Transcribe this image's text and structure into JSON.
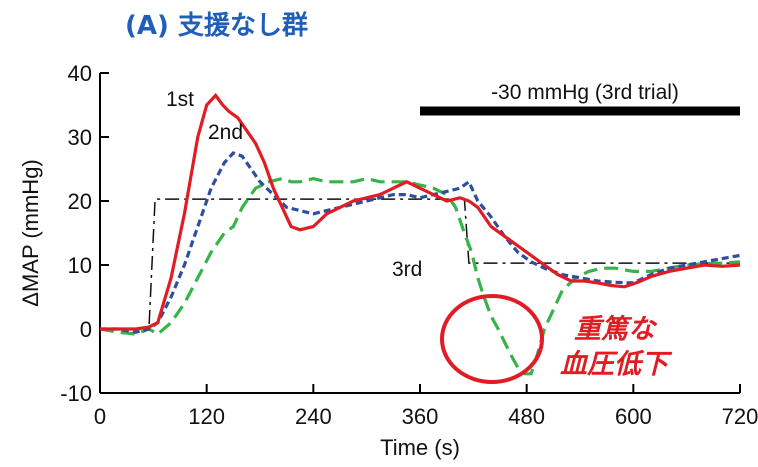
{
  "title": "(A) 支援なし群",
  "colors": {
    "title": "#1f5fb8",
    "first": "#e11c24",
    "second": "#2e4f9e",
    "third": "#37b449",
    "step": "#111111",
    "bar": "#000000",
    "highlight": "#e11c24"
  },
  "chart_data": {
    "type": "line",
    "xlabel": "Time (s)",
    "ylabel": "ΔMAP (mmHg)",
    "xlim": [
      0,
      720
    ],
    "ylim": [
      -10,
      40
    ],
    "xticks": [
      0,
      120,
      240,
      360,
      480,
      600,
      720
    ],
    "yticks": [
      -10,
      0,
      10,
      20,
      30,
      40
    ],
    "bar_label": "-30 mmHg (3rd trial)",
    "bar_range": [
      360,
      720
    ],
    "step_profile": {
      "x": [
        0,
        55,
        62,
        410,
        415,
        720
      ],
      "y": [
        0,
        0,
        20.3,
        20.3,
        10.3,
        10.3
      ]
    },
    "series": [
      {
        "name": "1st",
        "x": [
          0,
          20,
          40,
          55,
          65,
          80,
          95,
          110,
          120,
          130,
          138,
          145,
          155,
          165,
          175,
          185,
          195,
          205,
          215,
          225,
          240,
          255,
          270,
          285,
          300,
          315,
          330,
          345,
          360,
          375,
          390,
          405,
          415,
          425,
          440,
          455,
          470,
          485,
          500,
          515,
          530,
          545,
          560,
          575,
          590,
          605,
          620,
          640,
          660,
          680,
          700,
          720
        ],
        "y": [
          0,
          0,
          0,
          0.3,
          1,
          8,
          18,
          30,
          35,
          36.5,
          35,
          34,
          33,
          31,
          29,
          26,
          22,
          19,
          16,
          15.5,
          16,
          18,
          19,
          20,
          20.5,
          21,
          22,
          23,
          22,
          21,
          20,
          20.5,
          20,
          19,
          16,
          14.5,
          13,
          11.5,
          10,
          8.5,
          7.5,
          7.5,
          7.2,
          6.8,
          6.6,
          7.3,
          8.2,
          9,
          9.5,
          10,
          9.8,
          10
        ]
      },
      {
        "name": "2nd",
        "x": [
          0,
          20,
          40,
          55,
          65,
          80,
          95,
          110,
          125,
          140,
          150,
          160,
          170,
          180,
          195,
          210,
          225,
          240,
          255,
          270,
          285,
          300,
          315,
          330,
          345,
          360,
          375,
          390,
          405,
          415,
          425,
          440,
          455,
          470,
          485,
          500,
          520,
          540,
          560,
          580,
          600,
          620,
          640,
          660,
          680,
          700,
          720
        ],
        "y": [
          0,
          0,
          -0.5,
          0,
          1,
          5,
          10,
          16,
          22,
          26,
          27.5,
          27,
          25,
          23,
          21,
          19,
          18.5,
          18,
          18.5,
          19,
          19.5,
          20,
          20.5,
          21,
          21,
          20.5,
          21,
          21.5,
          22,
          23,
          20,
          17.5,
          14.5,
          12,
          10.5,
          9.5,
          8.5,
          8,
          7.5,
          7.3,
          7.2,
          8.5,
          9.5,
          10,
          10.5,
          11,
          11.5
        ]
      },
      {
        "name": "3rd",
        "x": [
          0,
          20,
          40,
          55,
          65,
          80,
          95,
          110,
          125,
          140,
          150,
          160,
          175,
          190,
          205,
          215,
          225,
          240,
          255,
          270,
          285,
          300,
          315,
          330,
          345,
          360,
          375,
          390,
          400,
          410,
          418,
          425,
          432,
          440,
          448,
          455,
          462,
          470,
          478,
          485,
          492,
          500,
          510,
          520,
          535,
          550,
          565,
          580,
          600,
          620,
          640,
          660,
          680,
          700,
          720
        ],
        "y": [
          0,
          -0.5,
          -0.8,
          0,
          -0.8,
          1,
          4,
          8,
          12,
          15,
          16,
          19,
          22,
          23,
          23.5,
          23,
          23,
          23.5,
          23,
          23,
          23,
          23.5,
          23,
          23,
          23,
          22.5,
          22,
          21,
          19,
          15,
          12,
          8,
          5,
          2,
          0,
          -2,
          -4,
          -6,
          -7,
          -7,
          -4,
          0,
          3,
          6,
          8,
          9,
          9.5,
          9.5,
          9,
          9,
          9.5,
          10,
          10.2,
          10.3,
          10.5
        ]
      }
    ],
    "labels": [
      {
        "text": "1st"
      },
      {
        "text": "2nd"
      },
      {
        "text": "3rd"
      }
    ],
    "highlight_text": [
      "重篤な",
      "血圧低下"
    ]
  }
}
